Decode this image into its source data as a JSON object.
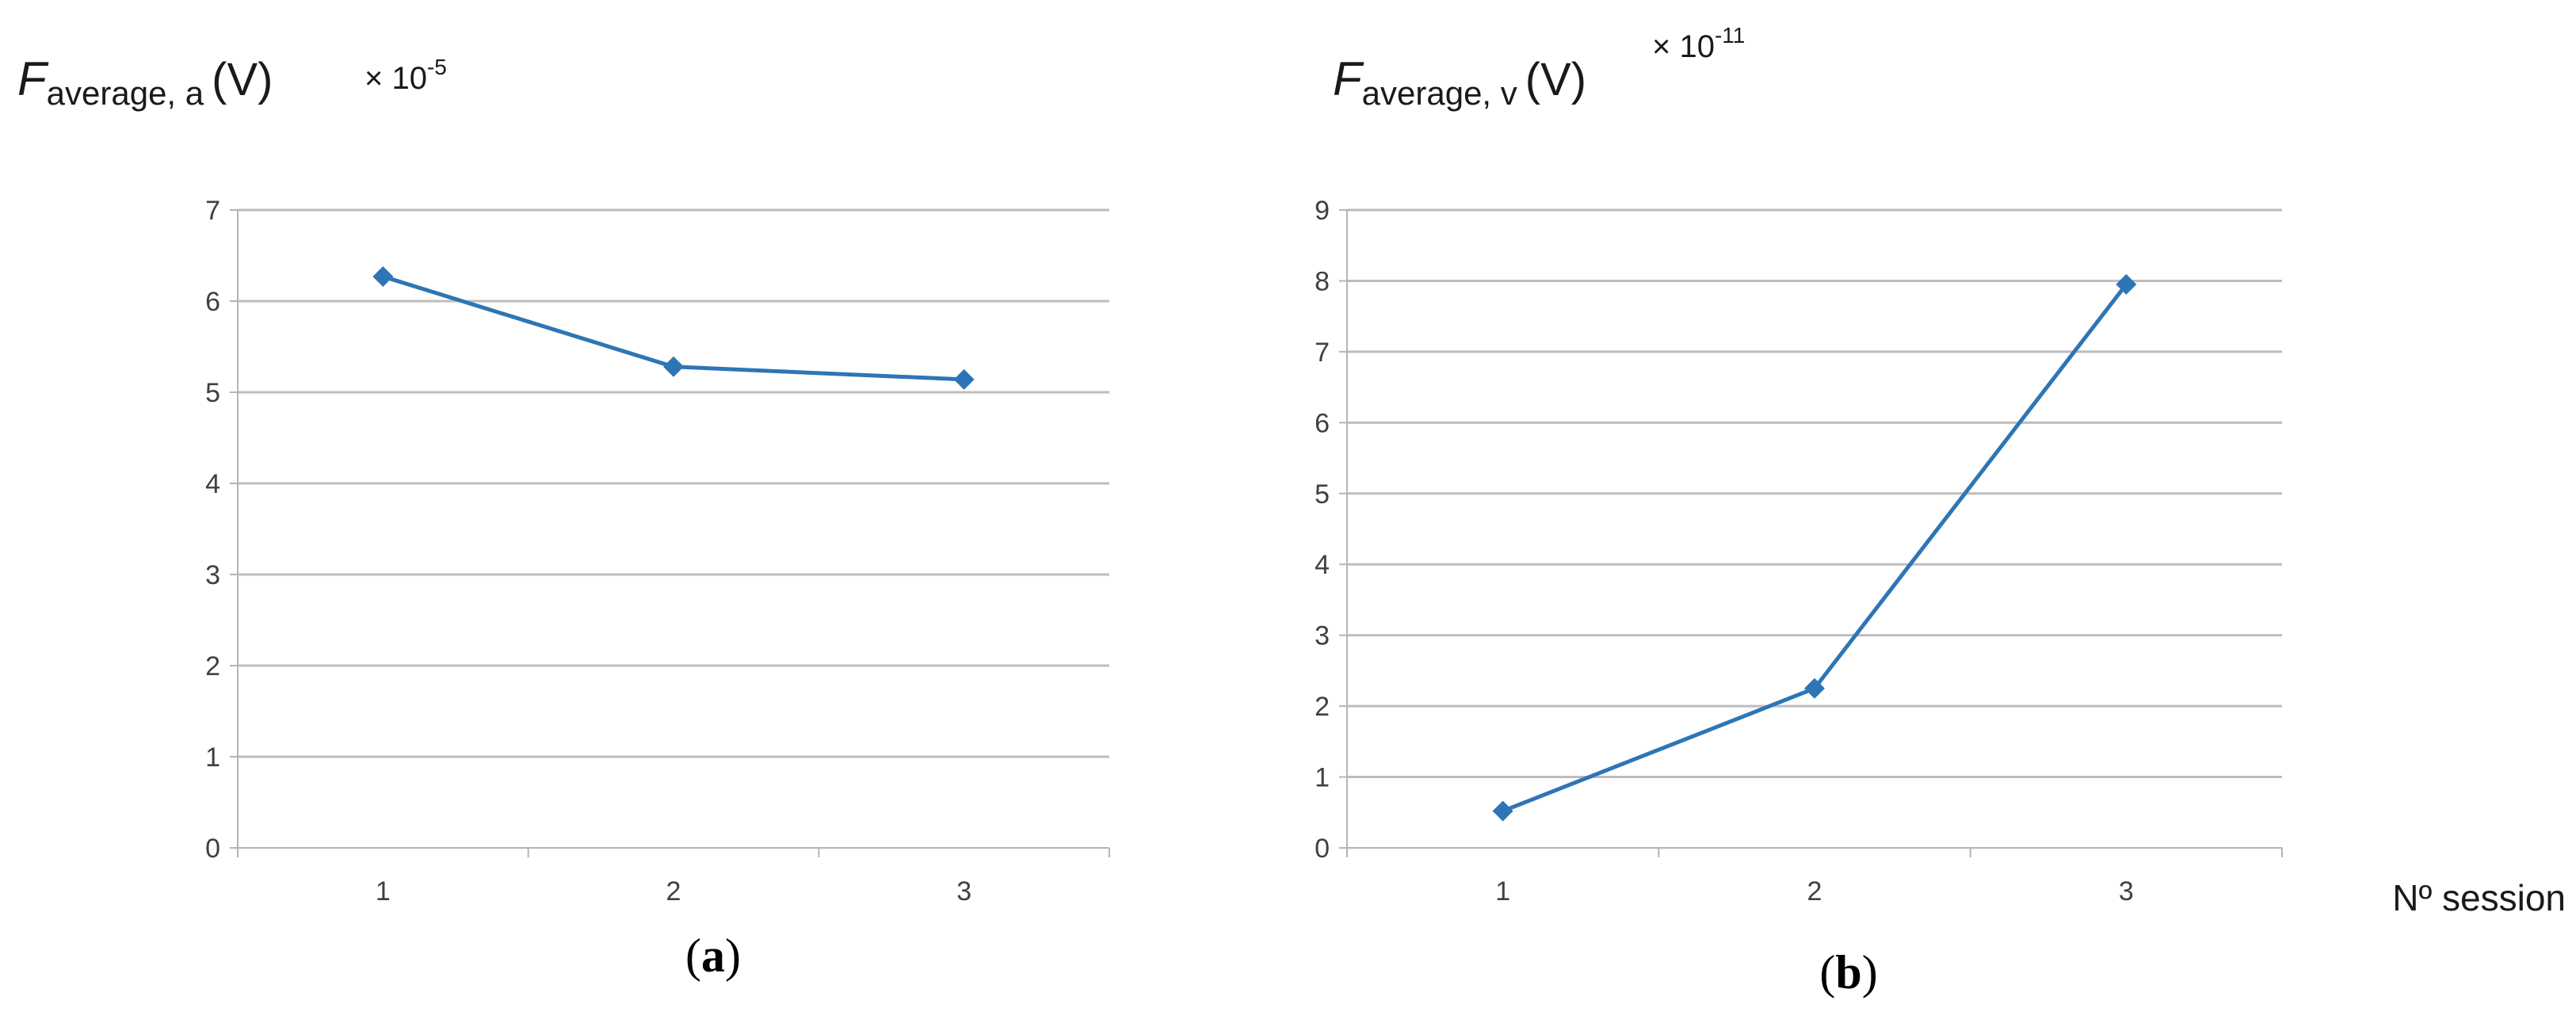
{
  "chart_data": [
    {
      "type": "line",
      "panel_label": {
        "open": "(",
        "letter": "a",
        "close": ")"
      },
      "ylabel": {
        "symbol": "F",
        "subscript": "average, a",
        "unit": "(V)",
        "multiplier": "× 10",
        "exponent": "-5"
      },
      "xlabel": "",
      "categories": [
        "1",
        "2",
        "3"
      ],
      "ylim": [
        0,
        7
      ],
      "yticks": [
        "0",
        "1",
        "2",
        "3",
        "4",
        "5",
        "6",
        "7"
      ],
      "grid": true,
      "color": "#2E75B6",
      "series": [
        {
          "name": "F average, a",
          "values": [
            6.27,
            5.28,
            5.14
          ]
        }
      ]
    },
    {
      "type": "line",
      "panel_label": {
        "open": "(",
        "letter": "b",
        "close": ")"
      },
      "ylabel": {
        "symbol": "F",
        "subscript": "average, v",
        "unit": "(V)",
        "multiplier": "× 10",
        "exponent": "-11"
      },
      "xlabel": "Nº session",
      "categories": [
        "1",
        "2",
        "3"
      ],
      "ylim": [
        0,
        9
      ],
      "yticks": [
        "0",
        "1",
        "2",
        "3",
        "4",
        "5",
        "6",
        "7",
        "8",
        "9"
      ],
      "grid": true,
      "color": "#2E75B6",
      "series": [
        {
          "name": "F average, v",
          "values": [
            0.52,
            2.25,
            7.95
          ]
        }
      ]
    }
  ]
}
